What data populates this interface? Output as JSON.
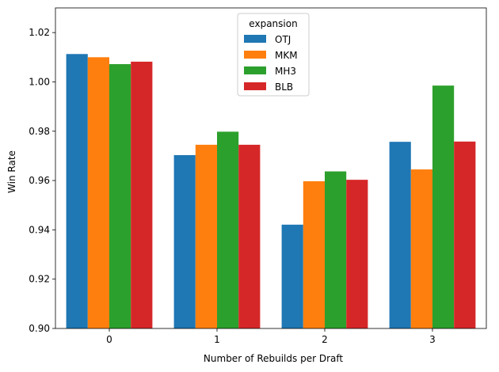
{
  "chart_data": {
    "type": "bar",
    "xlabel": "Number of Rebuilds per Draft",
    "ylabel": "Win Rate",
    "categories": [
      "0",
      "1",
      "2",
      "3"
    ],
    "ylim": [
      0.9,
      1.03
    ],
    "yticks": [
      0.9,
      0.92,
      0.94,
      0.96,
      0.98,
      1.0,
      1.02
    ],
    "ytick_labels": [
      "0.90",
      "0.92",
      "0.94",
      "0.96",
      "0.98",
      "1.00",
      "1.02"
    ],
    "legend_title": "expansion",
    "legend_position": "top-center",
    "grid": false,
    "series": [
      {
        "name": "OTJ",
        "color": "#1f77b4",
        "values": [
          1.0113,
          0.9703,
          0.9421,
          0.9757
        ]
      },
      {
        "name": "MKM",
        "color": "#ff7f0e",
        "values": [
          1.01,
          0.9745,
          0.9597,
          0.9645
        ]
      },
      {
        "name": "MH3",
        "color": "#2ca02c",
        "values": [
          1.0072,
          0.9798,
          0.9637,
          0.9985
        ]
      },
      {
        "name": "BLB",
        "color": "#d62728",
        "values": [
          1.0082,
          0.9745,
          0.9603,
          0.9758
        ]
      }
    ]
  }
}
